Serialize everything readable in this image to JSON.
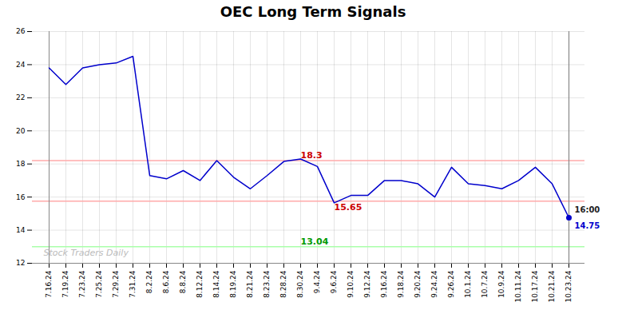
{
  "chart_data": {
    "type": "line",
    "title": "OEC Long Term Signals",
    "categories": [
      "7.16.24",
      "7.19.24",
      "7.23.24",
      "7.25.24",
      "7.29.24",
      "7.31.24",
      "8.2.24",
      "8.6.24",
      "8.8.24",
      "8.12.24",
      "8.14.24",
      "8.19.24",
      "8.21.24",
      "8.23.24",
      "8.28.24",
      "8.30.24",
      "9.4.24",
      "9.6.24",
      "9.10.24",
      "9.12.24",
      "9.16.24",
      "9.18.24",
      "9.20.24",
      "9.24.24",
      "9.26.24",
      "10.1.24",
      "10.7.24",
      "10.9.24",
      "10.11.24",
      "10.17.24",
      "10.21.24",
      "10.23.24"
    ],
    "values": [
      23.8,
      22.8,
      23.8,
      24.0,
      24.1,
      24.5,
      17.3,
      17.1,
      17.6,
      17.0,
      18.2,
      17.2,
      16.5,
      17.3,
      18.15,
      18.3,
      17.85,
      15.65,
      16.1,
      16.1,
      17.0,
      17.0,
      16.8,
      16.0,
      17.8,
      16.8,
      16.7,
      16.5,
      17.0,
      17.8,
      16.8,
      14.75
    ],
    "color": "#0000cc",
    "ylim": [
      12,
      26
    ],
    "yticks": [
      12,
      14,
      16,
      18,
      20,
      22,
      24,
      26
    ],
    "grid": true,
    "hlines": [
      {
        "value": 18.2,
        "color": "#ffaaaa"
      },
      {
        "value": 15.75,
        "color": "#ffaaaa"
      },
      {
        "value": 13.0,
        "color": "#aaffaa"
      }
    ],
    "annotations": [
      {
        "text": "18.3",
        "x": "8.30.24",
        "y": 18.2,
        "color": "#cc0000",
        "position": "above"
      },
      {
        "text": "15.65",
        "x": "9.6.24",
        "y": 15.75,
        "color": "#cc0000",
        "position": "below"
      },
      {
        "text": "13.04",
        "x": "8.30.24",
        "y": 13.0,
        "color": "#009900",
        "position": "above"
      }
    ],
    "last_label": "16:00",
    "last_value_label": "14.75",
    "watermark": "Stock Traders Daily"
  }
}
